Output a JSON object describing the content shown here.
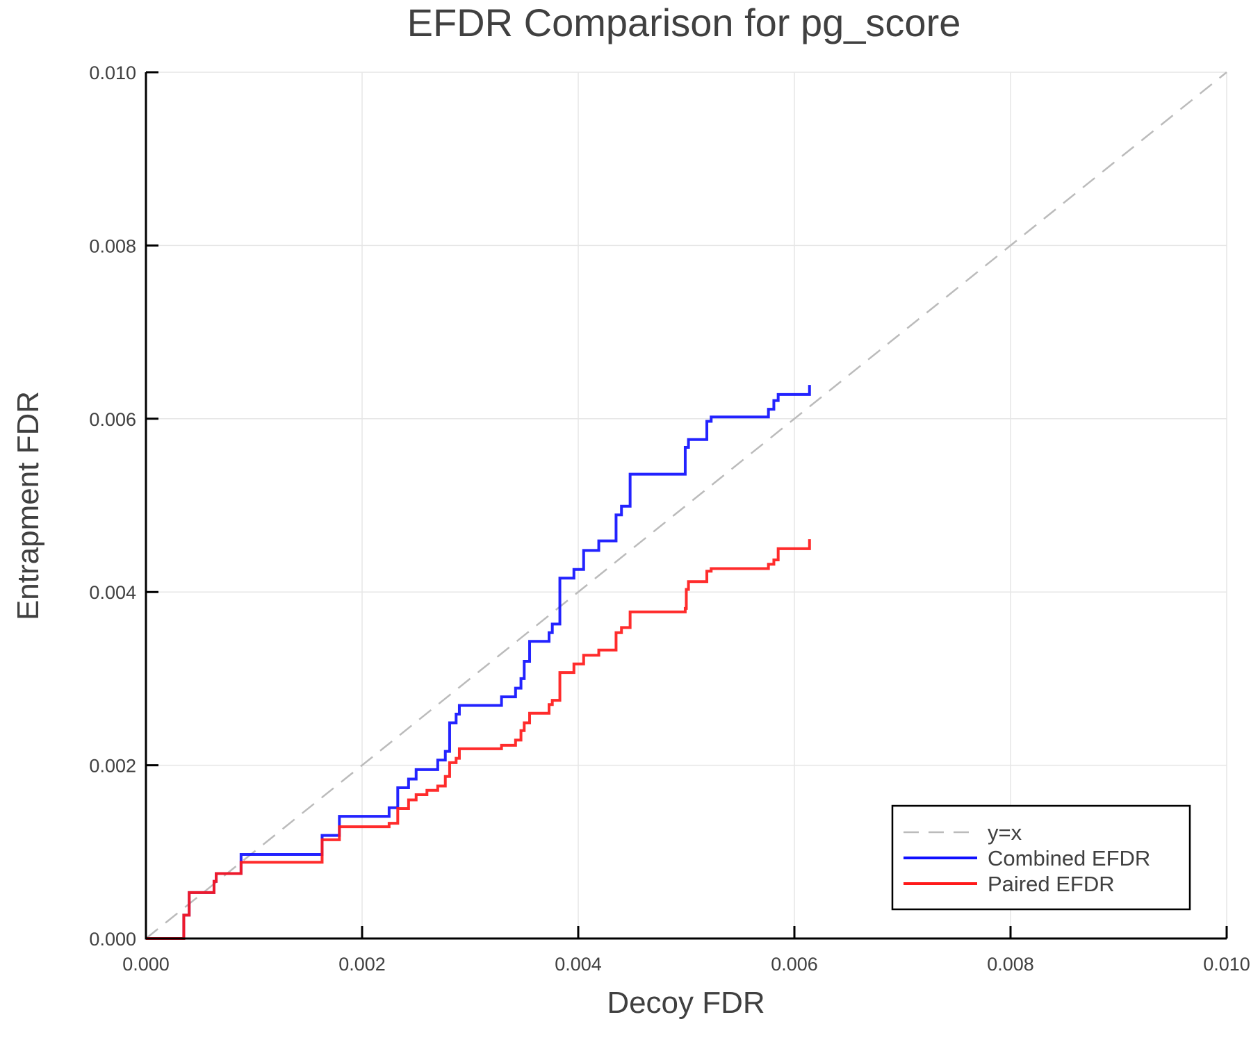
{
  "chart_data": {
    "type": "line",
    "title": "EFDR Comparison for pg_score",
    "xlabel": "Decoy FDR",
    "ylabel": "Entrapment FDR",
    "xlim": [
      0,
      0.01
    ],
    "ylim": [
      0,
      0.01
    ],
    "xticks": [
      "0.000",
      "0.002",
      "0.004",
      "0.006",
      "0.008",
      "0.010"
    ],
    "yticks": [
      "0.000",
      "0.002",
      "0.004",
      "0.006",
      "0.008",
      "0.010"
    ],
    "grid": true,
    "legend_position": "bottom-right",
    "series": [
      {
        "name": "y=x",
        "color": "#bbbbbb",
        "style": "dashed",
        "step": false,
        "x": [
          0,
          0.01
        ],
        "y": [
          0,
          0.01
        ]
      },
      {
        "name": "Combined EFDR",
        "color": "#1010ff",
        "style": "solid",
        "step": true,
        "x": [
          0,
          0.00035,
          0.0004,
          0.00063,
          0.00065,
          0.00088,
          0.00163,
          0.00179,
          0.00225,
          0.00233,
          0.00243,
          0.0025,
          0.0027,
          0.00277,
          0.00281,
          0.00287,
          0.0029,
          0.00329,
          0.00342,
          0.00347,
          0.0035,
          0.00355,
          0.00373,
          0.00376,
          0.00383,
          0.00396,
          0.00405,
          0.00419,
          0.00435,
          0.0044,
          0.00448,
          0.00499,
          0.00502,
          0.00519,
          0.00523,
          0.00576,
          0.00581,
          0.00585,
          0.00614
        ],
        "y": [
          0,
          0.00027,
          0.00053,
          0.00066,
          0.00075,
          0.00097,
          0.00119,
          0.00141,
          0.00151,
          0.00174,
          0.00184,
          0.00195,
          0.00206,
          0.00216,
          0.00249,
          0.00259,
          0.00269,
          0.00279,
          0.00289,
          0.003,
          0.0032,
          0.00343,
          0.00353,
          0.00363,
          0.00416,
          0.00426,
          0.00448,
          0.00459,
          0.00489,
          0.00499,
          0.00536,
          0.00567,
          0.00576,
          0.00597,
          0.00602,
          0.00611,
          0.00621,
          0.00628,
          0.00639
        ]
      },
      {
        "name": "Paired EFDR",
        "color": "#ff1a1a",
        "style": "solid",
        "step": true,
        "x": [
          0,
          0.00035,
          0.0004,
          0.00063,
          0.00065,
          0.00088,
          0.00163,
          0.00179,
          0.00225,
          0.00233,
          0.00243,
          0.0025,
          0.0026,
          0.0027,
          0.00277,
          0.00281,
          0.00287,
          0.0029,
          0.00329,
          0.00342,
          0.00347,
          0.0035,
          0.00355,
          0.00373,
          0.00376,
          0.00383,
          0.00396,
          0.00405,
          0.00419,
          0.00435,
          0.0044,
          0.00448,
          0.00499,
          0.005,
          0.00502,
          0.00519,
          0.00523,
          0.00576,
          0.00581,
          0.00585,
          0.00614
        ],
        "y": [
          0,
          0.00027,
          0.00053,
          0.00066,
          0.00075,
          0.00088,
          0.00114,
          0.00129,
          0.00133,
          0.0015,
          0.0016,
          0.00166,
          0.00171,
          0.00176,
          0.00187,
          0.00203,
          0.00208,
          0.00219,
          0.00223,
          0.00229,
          0.0024,
          0.00249,
          0.0026,
          0.0027,
          0.00275,
          0.00307,
          0.00317,
          0.00327,
          0.00333,
          0.00353,
          0.00359,
          0.00377,
          0.00381,
          0.00403,
          0.00412,
          0.00424,
          0.00427,
          0.00432,
          0.00437,
          0.0045,
          0.00461
        ]
      }
    ]
  }
}
